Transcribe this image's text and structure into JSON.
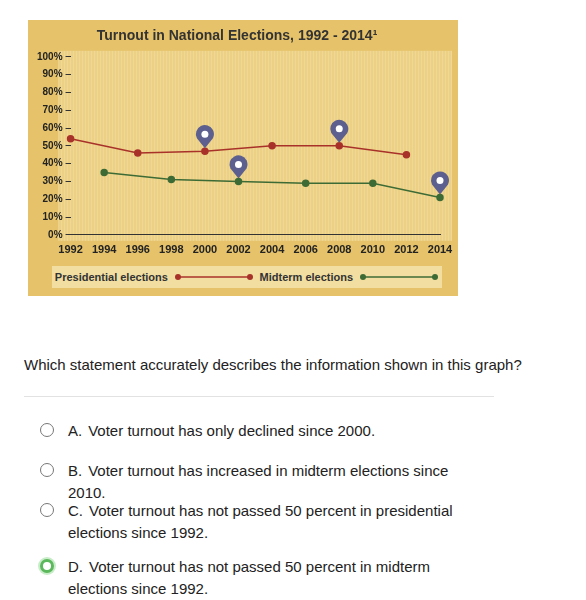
{
  "chart_data": {
    "type": "line",
    "title": "Turnout in National Elections, 1992 - 2014¹",
    "series": [
      {
        "name": "Presidential elections",
        "color": "#a8322a",
        "marker": "circle",
        "x": [
          1992,
          1996,
          2000,
          2004,
          2008,
          2012
        ],
        "values": [
          54,
          46,
          47,
          50,
          50,
          45
        ]
      },
      {
        "name": "Midterm elections",
        "color": "#3d6b35",
        "marker": "circle",
        "x": [
          1994,
          1998,
          2002,
          2006,
          2010,
          2014
        ],
        "values": [
          35,
          31,
          30,
          29,
          29,
          21
        ]
      }
    ],
    "xlim": [
      1992,
      2014
    ],
    "xticks": [
      1992,
      1994,
      1996,
      1998,
      2000,
      2002,
      2004,
      2006,
      2008,
      2010,
      2012,
      2014
    ],
    "ylim": [
      0,
      100
    ],
    "yticks": [
      {
        "value": 0,
        "label": "0%"
      },
      {
        "value": 10,
        "label": "10%"
      },
      {
        "value": 20,
        "label": "20%"
      },
      {
        "value": 30,
        "label": "30%"
      },
      {
        "value": 40,
        "label": "40%"
      },
      {
        "value": 50,
        "label": "50%"
      },
      {
        "value": 60,
        "label": "60%"
      },
      {
        "value": 70,
        "label": "70%"
      },
      {
        "value": 80,
        "label": "80%"
      },
      {
        "value": 90,
        "label": "90%"
      },
      {
        "value": 100,
        "label": "100%"
      }
    ],
    "grid": false,
    "legend": "bottom"
  },
  "question": "Which statement accurately describes the information shown in this graph?",
  "options": [
    {
      "letter": "A.",
      "text": "Voter turnout has only declined since 2000."
    },
    {
      "letter": "B.",
      "text": "Voter turnout has increased in midterm elections since 2010."
    },
    {
      "letter": "C.",
      "text": "Voter turnout has not passed 50 percent in presidential elections since 1992."
    },
    {
      "letter": "D.",
      "text": "Voter turnout has not passed 50 percent in midterm elections since 1992.",
      "selected": true
    }
  ]
}
